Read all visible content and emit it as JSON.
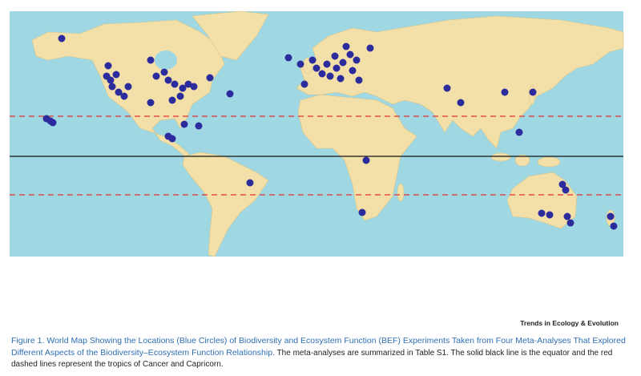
{
  "footer": {
    "journal": "Trends in Ecology & Evolution"
  },
  "caption": {
    "title": "Figure 1. World Map Showing the Locations (Blue Circles) of Biodiversity and Ecosystem Function (BEF) Experiments Taken from Four Meta-Analyses That Explored Different Aspects of the Biodiversity–Ecosystem Function Relationship.",
    "text": "The meta-analyses are summarized in Table S1. The solid black line is the equator and the red dashed lines represent the tropics of Cancer and Capricorn."
  }
}
